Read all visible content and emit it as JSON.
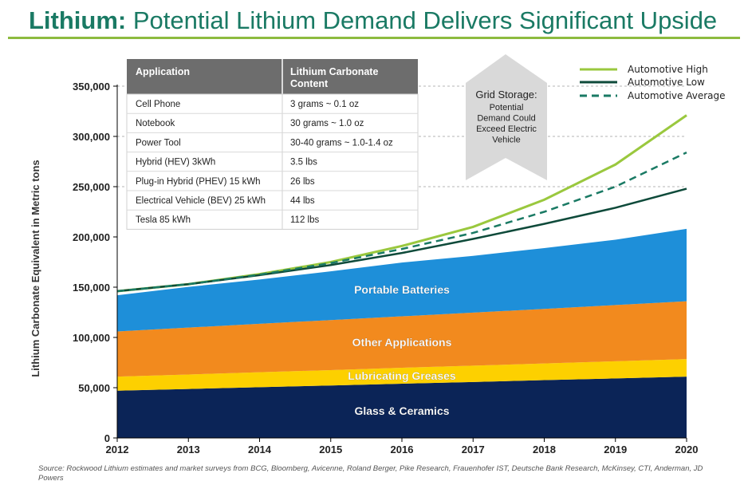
{
  "header": {
    "title_bold": "Lithium:",
    "title_rest": "Potential Lithium Demand Delivers Significant Upside"
  },
  "colors": {
    "title": "#1a7a64",
    "rule": "#8dbb3f",
    "glass": "#0b2457",
    "greases": "#fdd000",
    "other": "#f28a1e",
    "portable": "#1e8fd9",
    "auto_high": "#9ac83e",
    "auto_low": "#0e4a3a",
    "auto_avg": "#1a7a64",
    "callout_bg": "#d9d9d9",
    "table_header": "#6d6d6d"
  },
  "chart_data": {
    "type": "area",
    "ylabel": "Lithium Carbonate Equivalent in Metric tons",
    "ylim": [
      0,
      350000
    ],
    "yticks": [
      0,
      50000,
      100000,
      150000,
      200000,
      250000,
      300000,
      350000
    ],
    "ytick_labels": [
      "0",
      "50,000",
      "100,000",
      "150,000",
      "200,000",
      "250,000",
      "300,000",
      "350,000"
    ],
    "x": [
      2012,
      2013,
      2014,
      2015,
      2016,
      2017,
      2018,
      2019,
      2020
    ],
    "x_labels": [
      "2012",
      "2013",
      "2014",
      "2015",
      "2016",
      "2017",
      "2018",
      "2019",
      "2020"
    ],
    "stacked_series": [
      {
        "name": "Glass & Ceramics",
        "values": [
          47000,
          48700,
          50500,
          52200,
          54000,
          55700,
          57500,
          59200,
          61000
        ]
      },
      {
        "name": "Lubricating Greases",
        "values": [
          14000,
          14400,
          14900,
          15300,
          15800,
          16200,
          16600,
          17100,
          17500
        ]
      },
      {
        "name": "Other Applications",
        "values": [
          45000,
          46700,
          48200,
          49800,
          51200,
          52800,
          54300,
          55900,
          57500
        ]
      },
      {
        "name": "Portable Batteries",
        "values": [
          36000,
          40500,
          44000,
          48500,
          53500,
          56500,
          60500,
          65000,
          72000
        ]
      }
    ],
    "line_series": [
      {
        "name": "Automotive High",
        "style": "solid",
        "values": [
          146000,
          153000,
          163000,
          175000,
          191000,
          210000,
          237000,
          272000,
          321000
        ]
      },
      {
        "name": "Automotive Low",
        "style": "solid",
        "values": [
          146000,
          153000,
          162000,
          172000,
          184000,
          198000,
          213000,
          229000,
          248000
        ]
      },
      {
        "name": "Automotive Average",
        "style": "dashed",
        "values": [
          146000,
          153000,
          162500,
          174000,
          188000,
          204000,
          225000,
          250000,
          284000
        ]
      }
    ],
    "legend_position": "top-right",
    "grid": "dashed horizontal at 250,000 / 300,000 / 350,000",
    "callout": "Grid Storage: Potential Demand Could Exceed Electric Vehicle",
    "inset_table": {
      "headers": [
        "Application",
        "Lithium Carbonate Content"
      ],
      "rows": [
        [
          "Cell Phone",
          "3 grams ~ 0.1 oz"
        ],
        [
          "Notebook",
          "30 grams ~ 1.0 oz"
        ],
        [
          "Power Tool",
          "30-40 grams ~ 1.0-1.4 oz"
        ],
        [
          "Hybrid (HEV) 3kWh",
          "3.5 lbs"
        ],
        [
          "Plug-in Hybrid (PHEV) 15 kWh",
          "26 lbs"
        ],
        [
          "Electrical Vehicle (BEV) 25 kWh",
          "44 lbs"
        ],
        [
          "Tesla 85 kWh",
          "112 lbs"
        ]
      ]
    }
  },
  "footer": {
    "source": "Source: Rockwood Lithium estimates and market surveys from BCG, Bloomberg, Avicenne, Roland Berger, Pike Research, Frauenhofer IST, Deutsche Bank Research, McKinsey, CTI, Anderman, JD Powers"
  }
}
